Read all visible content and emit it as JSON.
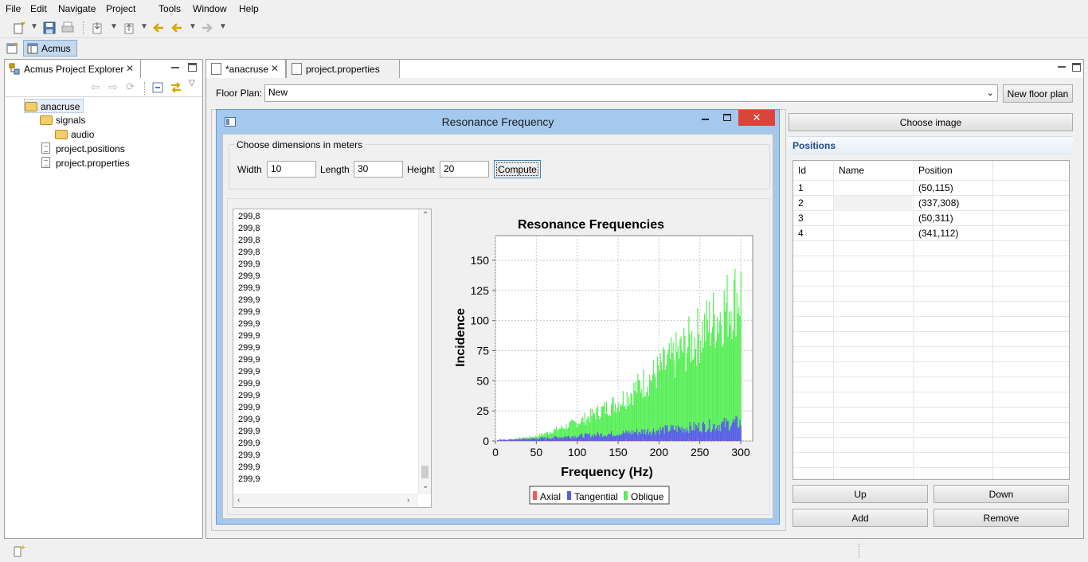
{
  "menu": [
    "File",
    "Edit",
    "Navigate",
    "Project",
    "Tools",
    "Window",
    "Help"
  ],
  "perspective": {
    "label": "Acmus"
  },
  "explorer": {
    "title": "Acmus Project Explorer",
    "tree": [
      {
        "label": "anacruse",
        "icon": "folder-open-icon"
      },
      {
        "label": "signals",
        "icon": "folder-open-icon"
      },
      {
        "label": "audio",
        "icon": "folder-icon"
      },
      {
        "label": "project.positions",
        "icon": "file-icon"
      },
      {
        "label": "project.properties",
        "icon": "file-icon"
      }
    ]
  },
  "editor": {
    "tabs": [
      {
        "label": "*anacruse"
      },
      {
        "label": "project.properties"
      }
    ],
    "floor_plan_label": "Floor Plan:",
    "floor_plan_value": "New",
    "new_floor_plan_label": "New floor plan",
    "choose_image_label": "Choose image",
    "positions_title": "Positions",
    "positions": {
      "columns": [
        "Id",
        "Name",
        "Position"
      ],
      "rows": [
        {
          "id": "1",
          "name": "",
          "position": "(50,115)"
        },
        {
          "id": "2",
          "name": "",
          "position": "(337,308)"
        },
        {
          "id": "3",
          "name": "",
          "position": "(50,311)"
        },
        {
          "id": "4",
          "name": "",
          "position": "(341,112)"
        }
      ]
    },
    "buttons": {
      "up": "Up",
      "down": "Down",
      "add": "Add",
      "remove": "Remove"
    }
  },
  "dialog": {
    "title": "Resonance Frequency",
    "group_label": "Choose dimensions in meters",
    "width_label": "Width",
    "width_value": "10",
    "length_label": "Length",
    "length_value": "30",
    "height_label": "Height",
    "height_value": "20",
    "compute_label": "Compute",
    "list": [
      "299,8",
      "299,8",
      "299,8",
      "299,8",
      "299,9",
      "299,9",
      "299,9",
      "299,9",
      "299,9",
      "299,9",
      "299,9",
      "299,9",
      "299,9",
      "299,9",
      "299,9",
      "299,9",
      "299,9",
      "299,9",
      "299,9",
      "299,9",
      "299,9",
      "299,9",
      "299,9"
    ]
  },
  "colors": {
    "axial": "#ff5555",
    "tangential": "#5a5af0",
    "oblique": "#55ee55",
    "accent": "#a4c8ee",
    "close": "#d9453b"
  },
  "chart_data": {
    "type": "bar",
    "title": "Resonance Frequencies",
    "xlabel": "Frequency (Hz)",
    "ylabel": "Incidence",
    "xlim": [
      0,
      300
    ],
    "ylim": [
      0,
      170
    ],
    "xticks": [
      0,
      50,
      100,
      150,
      200,
      250,
      300
    ],
    "yticks": [
      0,
      25,
      50,
      75,
      100,
      125,
      150
    ],
    "grid": true,
    "legend": "bottom",
    "series": [
      {
        "name": "Axial",
        "x": [
          0,
          50,
          100,
          150,
          200,
          250,
          300
        ],
        "values": [
          1,
          1,
          1,
          1,
          1,
          1,
          1
        ]
      },
      {
        "name": "Tangential",
        "x": [
          0,
          50,
          100,
          150,
          200,
          250,
          300
        ],
        "values": [
          1,
          3,
          6,
          9,
          13,
          17,
          22
        ]
      },
      {
        "name": "Oblique",
        "x": [
          0,
          50,
          100,
          150,
          200,
          250,
          300
        ],
        "values": [
          0,
          5,
          20,
          42,
          75,
          115,
          160
        ]
      }
    ]
  }
}
